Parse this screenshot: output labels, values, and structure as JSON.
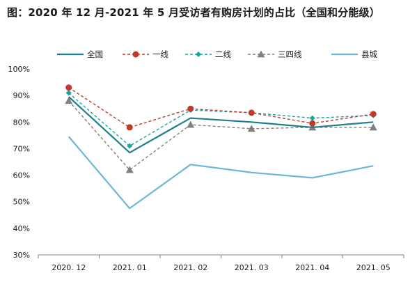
{
  "chart_data": {
    "type": "line",
    "title": "图：2020 年 12 月-2021 年 5 月受访者有购房计划的占比（全国和分能级）",
    "categories": [
      "2020. 12",
      "2021. 01",
      "2021. 02",
      "2021. 03",
      "2021. 04",
      "2021. 05"
    ],
    "ylim": [
      30,
      100
    ],
    "yticks": [
      "100%",
      "90%",
      "80%",
      "70%",
      "60%",
      "50%",
      "40%",
      "30%"
    ],
    "ytick_values": [
      100,
      90,
      80,
      70,
      60,
      50,
      40,
      30
    ],
    "legend_position": "top",
    "grid": false,
    "series": [
      {
        "name": "全国",
        "values": [
          89.5,
          68.5,
          81.5,
          80.0,
          78.0,
          80.0
        ],
        "color": "#1f7e8c",
        "style": "solid",
        "marker": "none"
      },
      {
        "name": "一线",
        "values": [
          93.0,
          78.0,
          85.0,
          83.5,
          79.5,
          83.0
        ],
        "color": "#c0392b",
        "style": "dashed",
        "marker": "circle"
      },
      {
        "name": "二线",
        "values": [
          91.0,
          71.0,
          84.5,
          83.5,
          81.5,
          82.5
        ],
        "color": "#17a6a0",
        "style": "dashed",
        "marker": "diamond"
      },
      {
        "name": "三四线",
        "values": [
          88.0,
          62.0,
          79.0,
          77.5,
          78.0,
          78.0
        ],
        "color": "#808080",
        "style": "dashed",
        "marker": "triangle"
      },
      {
        "name": "县城",
        "values": [
          74.5,
          47.5,
          64.0,
          61.0,
          59.0,
          63.5
        ],
        "color": "#6ab7d8",
        "style": "solid",
        "marker": "none"
      }
    ]
  }
}
